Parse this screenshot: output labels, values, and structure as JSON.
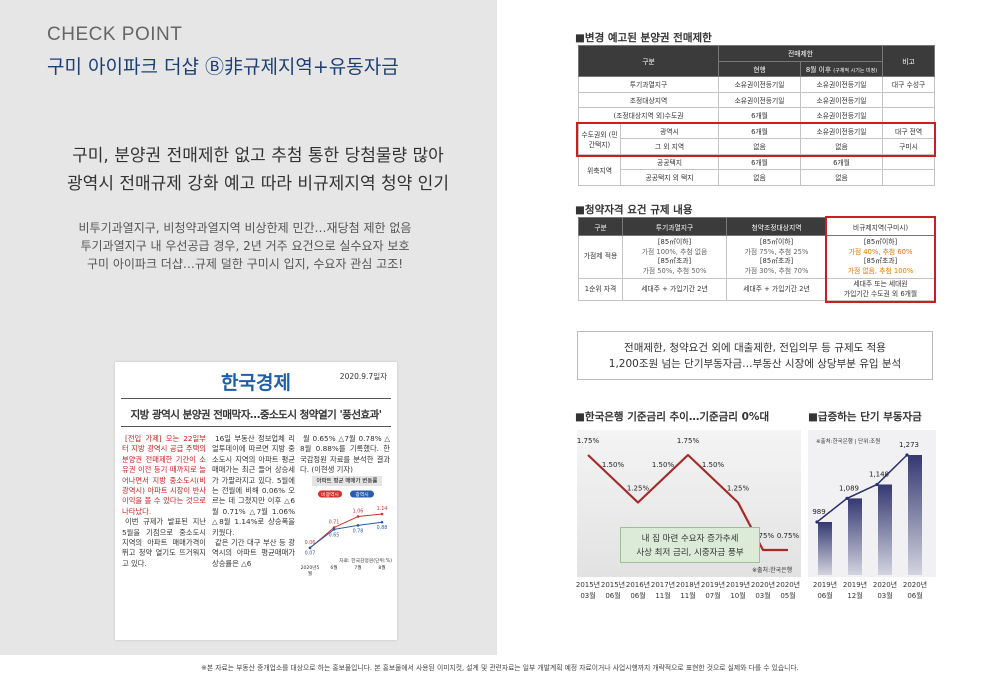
{
  "header": {
    "kicker": "CHECK POINT",
    "title": "구미 아이파크 더샵 Ⓑ非규제지역+유동자금"
  },
  "headline": [
    "구미, 분양권 전매제한 없고 추첨 통한 당첨물량 많아",
    "광역시 전매규제 강화 예고 따라 비규제지역 청약 인기"
  ],
  "body": [
    "비투기과열지구, 비청약과열지역 비상한제 민간…재당첨 제한 없음",
    "투기과열지구 내 우선공급 경우, 2년 거주 요건으로 실수요자 보호",
    "구미 아이파크 더샵…규제 덜한 구미시 입지, 수요자 관심 고조!"
  ],
  "clipping": {
    "paper": "한국경제",
    "date": "2020.9.7일자",
    "headline": "지방 광역시 분양권 전매막자…중소도시 청약열기 '풍선효과'",
    "columns": [
      [
        "[전입 가제] 오는 22일부터 지방 광역시 공급 주택의 분양권 전매제한 기간이 소유권 이전 등기 때까지로 늘어나면서 지방 중소도시(비광역시) 아파트 시장이 반사이익을 볼 수 있다는 것으로 나타났다.",
        "이번 규제가 발표된 지난 5월을 기점으로 중소도시 지역의 아파트 매매가격이 뛰고 청약 열기도 뜨거워지고 있다."
      ],
      [
        "16일 부동산 정보업체 리얼투데이에 따르면 지방 중소도시 지역의 아파트 평균매매가는 최근 들어 상승세가 가팔라지고 있다. 5월에는 전월에 비해 0.06% 오르는 데 그쳤지만 이후 △6월 0.71% △7월 1.06% △8월 1.14%로 상승폭을 키웠다.",
        "같은 기간 대구 부산 등 광역시의 아파트 평균매매가 상승률은 △6"
      ],
      [
        "월 0.65% △7월 0.78% △8월 0.88%를 기록했다. 한국감정원 자료를 분석한 결과다. (이현생 기자)"
      ]
    ]
  },
  "sale_restriction": {
    "title": "■변경 예고된 분양권 전매제한",
    "header": {
      "category": "구분",
      "restriction": "전매제한",
      "current": "현행",
      "after": "8월 이후",
      "after_note": "(구체적 시기는 미정)",
      "note": "비고"
    },
    "rows": [
      {
        "label": "투기과열지구",
        "current": "소유권이전등기일",
        "after": "소유권이전등기일",
        "note": "대구 수성구"
      },
      {
        "label": "조정대상지역",
        "current": "소유권이전등기일",
        "after": "소유권이전등기일"
      },
      {
        "label": "(조정대상지역 외)수도권",
        "current": "6개월",
        "after": "소유권이전등기일"
      },
      {
        "group": "수도권외 (민간택지)",
        "label": "광역시",
        "current": "6개월",
        "after": "소유권이전등기일",
        "note": "대구 전역"
      },
      {
        "label": "그 외 지역",
        "current": "없음",
        "after": "없음",
        "note": "구미시"
      },
      {
        "group": "위축지역",
        "label": "공공택지",
        "current": "6개월",
        "after": "6개월"
      },
      {
        "label": "공공택지 외 택지",
        "current": "없음",
        "after": "없음"
      }
    ]
  },
  "subscription": {
    "title": "■청약자격 요건 규제 내용",
    "header": [
      "구분",
      "투기과열지구",
      "청약조정대상지역",
      "비규제지역(구미시)"
    ],
    "rows": [
      {
        "label": "가점제 적용",
        "cells": [
          [
            "[85㎡이하]",
            "가점 100%, 추첨 없음",
            "[85㎡초과]",
            "가점 50%, 추첨 50%"
          ],
          [
            "[85㎡이하]",
            "가점 75%, 추첨 25%",
            "[85㎡초과]",
            "가점 30%, 추첨 70%"
          ],
          [
            "[85㎡이하]",
            "가점 40%, 추첨 60%",
            "[85㎡초과]",
            "가점 없음, 추첨 100%"
          ]
        ]
      },
      {
        "label": "1순위 자격",
        "cells": [
          [
            "세대주 + 가입기간 2년"
          ],
          [
            "세대주 + 가입기간 2년"
          ],
          [
            "세대주 또는 세대원",
            "가입기간 수도권 외 6개월"
          ]
        ]
      }
    ]
  },
  "summary": [
    "전매제한, 청약요건 외에 대출제한, 전입의무 등 규제도 적용",
    "1,200조원 넘는 단기부동자금…부동산 시장에 상당부분 유입 분석"
  ],
  "chart_data": [
    {
      "type": "line",
      "title": "아파트 평균 매매가 변동률",
      "categories": [
        "2020년5월",
        "6월",
        "7월",
        "8월"
      ],
      "series": [
        {
          "name": "비광역시",
          "color": "#d0312d",
          "values": [
            0.06,
            0.71,
            1.06,
            1.14
          ]
        },
        {
          "name": "광역시",
          "color": "#2a5caa",
          "values": [
            0.07,
            0.65,
            0.78,
            0.88
          ]
        }
      ],
      "source": "자료: 한국감정원(단위:%)"
    },
    {
      "type": "line",
      "title": "■한국은행 기준금리 추이…기준금리 0%대",
      "categories": [
        "2015년 03월",
        "2015년 06월",
        "2016년 06월",
        "2017년 11월",
        "2018년 11월",
        "2019년 07월",
        "2019년 10월",
        "2020년 03월",
        "2020년 05월"
      ],
      "values": [
        1.75,
        1.5,
        1.25,
        1.5,
        1.75,
        1.5,
        1.25,
        0.75,
        0.75
      ],
      "value_labels": [
        "1.75%",
        "1.50%",
        "1.25%",
        "1.50%",
        "1.75%",
        "1.50%",
        "1.25%",
        "0.75%",
        "0.75%"
      ],
      "color": "#a52a2a",
      "note": "※출처:한국은행",
      "callout": [
        "내 집 마련 수요자 증가추세",
        "사상 최저 금리, 시중자금 풍부"
      ]
    },
    {
      "type": "bar",
      "title": "■급증하는 단기 부동자금",
      "categories": [
        "2019년 06월",
        "2019년 12월",
        "2020년 03월",
        "2020년 06월"
      ],
      "values": [
        989,
        1089,
        1148,
        1273
      ],
      "value_labels": [
        "989",
        "1,089",
        "1,148",
        "1,273"
      ],
      "color": "#2b2f6b",
      "note": "※출처:한국은행 | 단위:조원"
    }
  ],
  "footer": "※본 자료는 부동산 중개업소를 대상으로 하는 홍보물입니다. 본 홍보물에서 사용된 이미지컷, 설계 및 관련자료는 일부 개발계획 예정 자료이거나 사업시행까지 개략적으로 표현한 것으로 실제와 다를 수 있습니다."
}
